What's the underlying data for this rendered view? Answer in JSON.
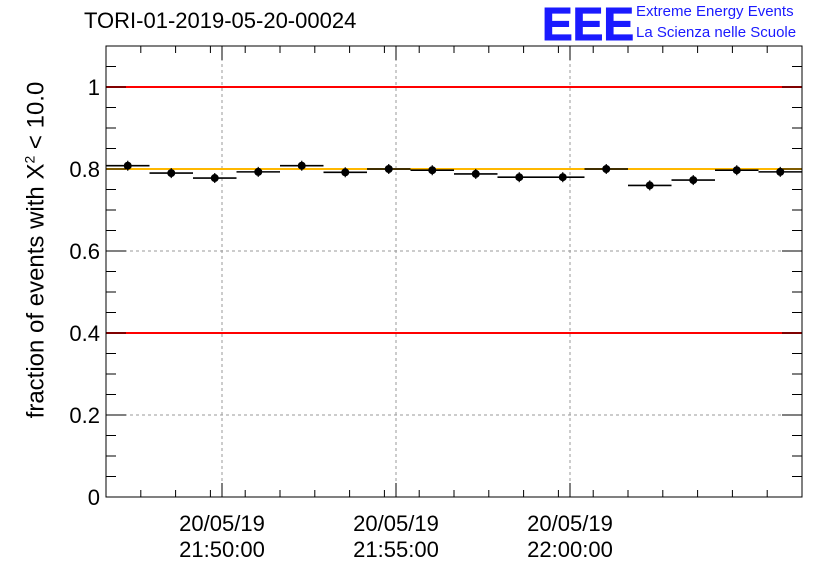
{
  "title": "TORI-01-2019-05-20-00024",
  "logo": {
    "mark": "EEE",
    "line1": "Extreme Energy Events",
    "line2": "La Scienza nelle Scuole",
    "color": "#1a1aff"
  },
  "ylabel": {
    "prefix": "fraction of events with ",
    "symbol": "X",
    "sup": "2",
    "suffix": " < 10.0"
  },
  "chart_data": {
    "type": "scatter",
    "title": "TORI-01-2019-05-20-00024",
    "ylim": [
      0,
      1.1
    ],
    "yticks": [
      0,
      0.2,
      0.4,
      0.6,
      0.8,
      1
    ],
    "ytick_labels": [
      "0",
      "0.2",
      "0.4",
      "0.6",
      "0.8",
      "1"
    ],
    "xticks": [
      {
        "date": "20/05/19",
        "time": "21:50:00"
      },
      {
        "date": "20/05/19",
        "time": "21:55:00"
      },
      {
        "date": "20/05/19",
        "time": "22:00:00"
      }
    ],
    "grid": true,
    "reference_lines": [
      {
        "y": 1.0,
        "color": "#ff0000"
      },
      {
        "y": 0.4,
        "color": "#ff0000"
      },
      {
        "y": 0.8,
        "color": "#ffb800"
      }
    ],
    "series": [
      {
        "x": [
          "21:47:05",
          "21:48:45",
          "21:50:25",
          "21:52:05",
          "21:53:45",
          "21:55:25",
          "21:57:05",
          "21:58:45",
          "22:00:25",
          "22:02:05"
        ],
        "y": [
          0.808,
          0.79,
          0.778,
          0.793,
          0.808,
          0.792,
          0.8,
          0.8,
          0.783,
          0.78
        ]
      }
    ],
    "points": [
      {
        "y": 0.808,
        "t0": "21:46:40",
        "t1": "21:47:55"
      },
      {
        "y": 0.79,
        "t0": "21:47:55",
        "t1": "21:49:10"
      },
      {
        "y": 0.778,
        "t0": "21:49:10",
        "t1": "21:50:25"
      },
      {
        "y": 0.793,
        "t0": "21:50:25",
        "t1": "21:51:40"
      },
      {
        "y": 0.808,
        "t0": "21:51:40",
        "t1": "21:52:55"
      },
      {
        "y": 0.792,
        "t0": "21:52:55",
        "t1": "21:54:10"
      },
      {
        "y": 0.8,
        "t0": "21:54:10",
        "t1": "21:55:25"
      },
      {
        "y": 0.797,
        "t0": "21:55:25",
        "t1": "21:56:40"
      },
      {
        "y": 0.788,
        "t0": "21:56:40",
        "t1": "21:57:55"
      },
      {
        "y": 0.78,
        "t0": "21:57:55",
        "t1": "21:59:10"
      },
      {
        "y": 0.78,
        "t0": "21:59:10",
        "t1": "22:00:25"
      },
      {
        "y": 0.8,
        "t0": "22:00:25",
        "t1": "22:01:40"
      },
      {
        "y": 0.76,
        "t0": "22:01:40",
        "t1": "22:02:55"
      },
      {
        "y": 0.773,
        "t0": "22:02:55",
        "t1": "22:04:10"
      },
      {
        "y": 0.797,
        "t0": "22:04:10",
        "t1": "22:05:25"
      },
      {
        "y": 0.793,
        "t0": "22:05:25",
        "t1": "22:06:40"
      }
    ]
  }
}
